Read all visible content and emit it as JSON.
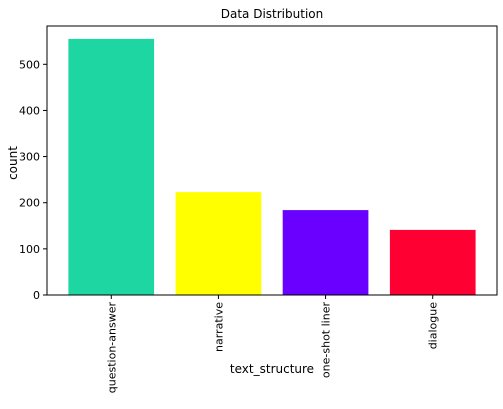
{
  "chart_data": {
    "type": "bar",
    "title": "Data Distribution",
    "xlabel": "text_structure",
    "ylabel": "count",
    "categories": [
      "question-answer",
      "narrative",
      "one-shot liner",
      "dialogue"
    ],
    "values": [
      555,
      223,
      184,
      141
    ],
    "colors": [
      "#1dd6a2",
      "#ffff00",
      "#6a00ff",
      "#ff0033"
    ],
    "ylim": [
      0,
      583
    ],
    "yticks": [
      "0",
      "100",
      "200",
      "300",
      "400",
      "500"
    ],
    "grid": false,
    "legend": "none"
  }
}
